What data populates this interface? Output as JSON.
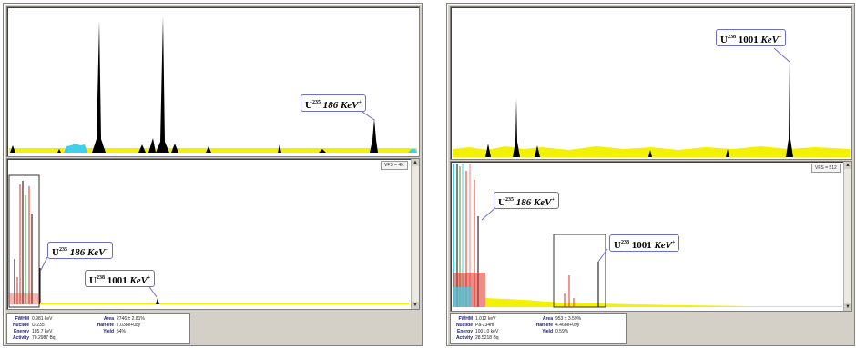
{
  "left_window": {
    "upper_callout": {
      "element": "U",
      "mass": "235",
      "energy": "186",
      "unit": "KeV"
    },
    "lower_callout_1": {
      "element": "U",
      "mass": "235",
      "energy": "186",
      "unit": "KeV"
    },
    "lower_callout_2": {
      "element": "U",
      "mass": "238",
      "energy": "1001",
      "unit": "KeV"
    },
    "vfs_label": "VFS = 4K",
    "info": {
      "fwhm_label": "FWHM",
      "fwhm": "0.981 keV",
      "nuclide_label": "Nuclide",
      "nuclide": "U-235",
      "energy_label": "Energy",
      "energy": "185.7 keV",
      "activity_label": "Activity",
      "activity": "70.2987 Bq",
      "area_label": "Area",
      "area": "2746  ± 2.81%",
      "halflife_label": "Half-life",
      "halflife": "7.038e+08y",
      "yield_label": "Yield",
      "yield": "54%"
    }
  },
  "right_window": {
    "upper_callout": {
      "element": "U",
      "mass": "238",
      "energy": "1001",
      "unit": "KeV"
    },
    "lower_callout_1": {
      "element": "U",
      "mass": "235",
      "energy": "186",
      "unit": "KeV"
    },
    "lower_callout_2": {
      "element": "U",
      "mass": "238",
      "energy": "1001",
      "unit": "KeV"
    },
    "vfs_label": "VFS = 512",
    "info": {
      "fwhm_label": "FWHM",
      "fwhm": "1.012 keV",
      "nuclide_label": "Nuclide",
      "nuclide": "Pa-234m",
      "energy_label": "Energy",
      "energy": "1001.0 keV",
      "activity_label": "Activity",
      "activity": "28.5218 Bq",
      "area_label": "Area",
      "area": "953  ± 3.59%",
      "halflife_label": "Half-life",
      "halflife": "4.468e+09y",
      "yield_label": "Yield",
      "yield": "0.59%"
    }
  },
  "colors": {
    "baseline": "#f2f200",
    "peak": "#000000",
    "callout_border": "#6b6fc9",
    "cyan": "#40d0e8",
    "red": "#e03020",
    "green": "#30a030",
    "pink": "#f08080"
  }
}
